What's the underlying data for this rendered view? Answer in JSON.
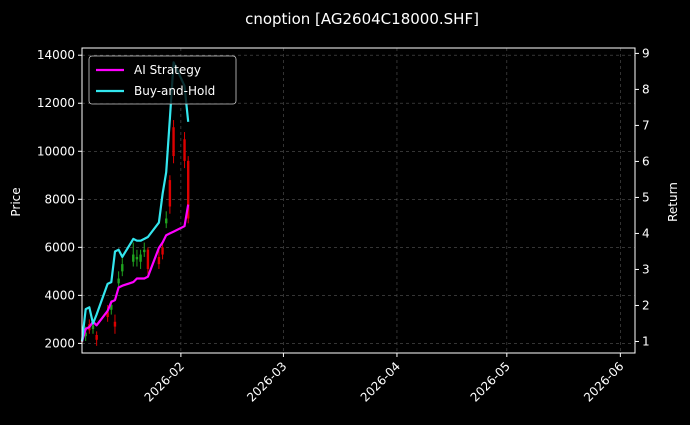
{
  "chart_data": {
    "type": "line",
    "title": "cnoption [AG2604C18000.SHF]",
    "xlabel": "",
    "ylabel": "Price",
    "ylabel_right": "Return",
    "x_ticks": [
      "2026-02",
      "2026-03",
      "2026-04",
      "2026-05",
      "2026-06"
    ],
    "x_range": [
      "2026-01-05",
      "2026-06-05"
    ],
    "y_ticks": [
      2000,
      4000,
      6000,
      8000,
      10000,
      12000,
      14000
    ],
    "ylim": [
      1600,
      14300
    ],
    "y2_ticks": [
      1,
      2,
      3,
      4,
      5,
      6,
      7,
      8,
      9
    ],
    "y2lim": [
      0.68,
      9.15
    ],
    "grid": true,
    "legend_position": "top-left",
    "candles": [
      {
        "date": "2026-01-05",
        "open": 2150,
        "close": 2050,
        "high": 2600,
        "low": 1700
      },
      {
        "date": "2026-01-06",
        "open": 2300,
        "close": 2450,
        "high": 2700,
        "low": 2100
      },
      {
        "date": "2026-01-07",
        "open": 2800,
        "close": 2550,
        "high": 3000,
        "low": 2400
      },
      {
        "date": "2026-01-08",
        "open": 2600,
        "close": 2750,
        "high": 2900,
        "low": 2400
      },
      {
        "date": "2026-01-09",
        "open": 2350,
        "close": 2150,
        "high": 2500,
        "low": 1900
      },
      {
        "date": "2026-01-12",
        "open": 3300,
        "close": 3100,
        "high": 3600,
        "low": 2900
      },
      {
        "date": "2026-01-13",
        "open": 3400,
        "close": 3600,
        "high": 3800,
        "low": 3200
      },
      {
        "date": "2026-01-14",
        "open": 2900,
        "close": 2700,
        "high": 3200,
        "low": 2400
      },
      {
        "date": "2026-01-15",
        "open": 4500,
        "close": 4700,
        "high": 5000,
        "low": 4300
      },
      {
        "date": "2026-01-16",
        "open": 5000,
        "close": 5300,
        "high": 5600,
        "low": 4800
      },
      {
        "date": "2026-01-19",
        "open": 5400,
        "close": 5700,
        "high": 6200,
        "low": 5200
      },
      {
        "date": "2026-01-20",
        "open": 5500,
        "close": 5600,
        "high": 5900,
        "low": 5200
      },
      {
        "date": "2026-01-21",
        "open": 5400,
        "close": 5700,
        "high": 5900,
        "low": 5100
      },
      {
        "date": "2026-01-22",
        "open": 5800,
        "close": 5900,
        "high": 6200,
        "low": 5600
      },
      {
        "date": "2026-01-23",
        "open": 5900,
        "close": 5100,
        "high": 6000,
        "low": 4900
      },
      {
        "date": "2026-01-26",
        "open": 5600,
        "close": 5300,
        "high": 6000,
        "low": 5100
      },
      {
        "date": "2026-01-27",
        "open": 6000,
        "close": 5700,
        "high": 6200,
        "low": 5500
      },
      {
        "date": "2026-01-28",
        "open": 7000,
        "close": 7200,
        "high": 7500,
        "low": 6800
      },
      {
        "date": "2026-01-29",
        "open": 8800,
        "close": 7700,
        "high": 9000,
        "low": 7400
      },
      {
        "date": "2026-01-30",
        "open": 11000,
        "close": 9800,
        "high": 11300,
        "low": 9500
      },
      {
        "date": "2026-02-02",
        "open": 10500,
        "close": 9600,
        "high": 10800,
        "low": 9300
      },
      {
        "date": "2026-02-03",
        "open": 9600,
        "close": 7200,
        "high": 9800,
        "low": 7000
      }
    ],
    "series": [
      {
        "name": "AI Strategy",
        "color": "#ff00ff",
        "axis": "right",
        "x": [
          "2026-01-05",
          "2026-01-06",
          "2026-01-07",
          "2026-01-08",
          "2026-01-09",
          "2026-01-12",
          "2026-01-13",
          "2026-01-14",
          "2026-01-15",
          "2026-01-16",
          "2026-01-19",
          "2026-01-20",
          "2026-01-21",
          "2026-01-22",
          "2026-01-23",
          "2026-01-26",
          "2026-01-27",
          "2026-01-28",
          "2026-01-29",
          "2026-01-30",
          "2026-02-02",
          "2026-02-03"
        ],
        "values": [
          1.0,
          1.35,
          1.4,
          1.55,
          1.45,
          1.85,
          2.1,
          2.15,
          2.5,
          2.55,
          2.65,
          2.75,
          2.75,
          2.75,
          2.8,
          3.6,
          3.75,
          3.95,
          4.0,
          4.05,
          4.2,
          4.8
        ]
      },
      {
        "name": "Buy-and-Hold",
        "color": "#33e6ee",
        "axis": "right",
        "x": [
          "2026-01-05",
          "2026-01-06",
          "2026-01-07",
          "2026-01-08",
          "2026-01-09",
          "2026-01-12",
          "2026-01-13",
          "2026-01-14",
          "2026-01-15",
          "2026-01-16",
          "2026-01-19",
          "2026-01-20",
          "2026-01-21",
          "2026-01-22",
          "2026-01-23",
          "2026-01-26",
          "2026-01-27",
          "2026-01-28",
          "2026-01-29",
          "2026-01-30",
          "2026-02-02",
          "2026-02-03"
        ],
        "values": [
          1.0,
          1.9,
          1.95,
          1.5,
          1.75,
          2.6,
          2.65,
          3.5,
          3.55,
          3.35,
          3.85,
          3.8,
          3.8,
          3.85,
          3.9,
          4.3,
          5.1,
          5.7,
          7.2,
          8.75,
          8.1,
          7.1
        ]
      }
    ]
  }
}
